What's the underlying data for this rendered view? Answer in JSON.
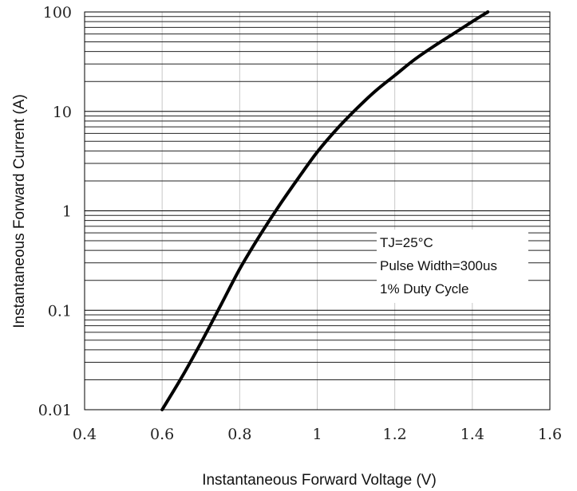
{
  "chart_data": {
    "type": "line",
    "title": "",
    "xlabel": "Instantaneous Forward Voltage (V)",
    "ylabel": "Instantaneous Forward Current (A)",
    "xlim": [
      0.4,
      1.6
    ],
    "ylim": [
      0.01,
      100
    ],
    "yscale": "log",
    "grid": true,
    "x_tick_labels": [
      "0.4",
      "0.6",
      "0.8",
      "1",
      "1.2",
      "1.4",
      "1.6"
    ],
    "x_tick_values": [
      0.4,
      0.6,
      0.8,
      1.0,
      1.2,
      1.4,
      1.6
    ],
    "y_tick_labels": [
      "0.01",
      "0.1",
      "1",
      "10",
      "100"
    ],
    "y_tick_values": [
      0.01,
      0.1,
      1,
      10,
      100
    ],
    "series": [
      {
        "x": [
          0.6,
          0.65,
          0.7,
          0.75,
          0.8,
          0.85,
          0.9,
          0.95,
          1.0,
          1.05,
          1.1,
          1.15,
          1.2,
          1.25,
          1.3,
          1.35,
          1.4,
          1.44
        ],
        "y": [
          0.01,
          0.021,
          0.047,
          0.11,
          0.26,
          0.55,
          1.1,
          2.1,
          3.9,
          6.6,
          10.5,
          16,
          23,
          33,
          45,
          60,
          80,
          100
        ]
      }
    ],
    "annotations": [
      "TJ=25°C",
      "Pulse Width=300us",
      "1% Duty Cycle"
    ]
  },
  "colors": {
    "line": "#000000",
    "grid_major": "#000000",
    "grid_minor": "#222222",
    "grid_vertical": "#c8c8c8",
    "annotation_bg": "#ffffff"
  }
}
